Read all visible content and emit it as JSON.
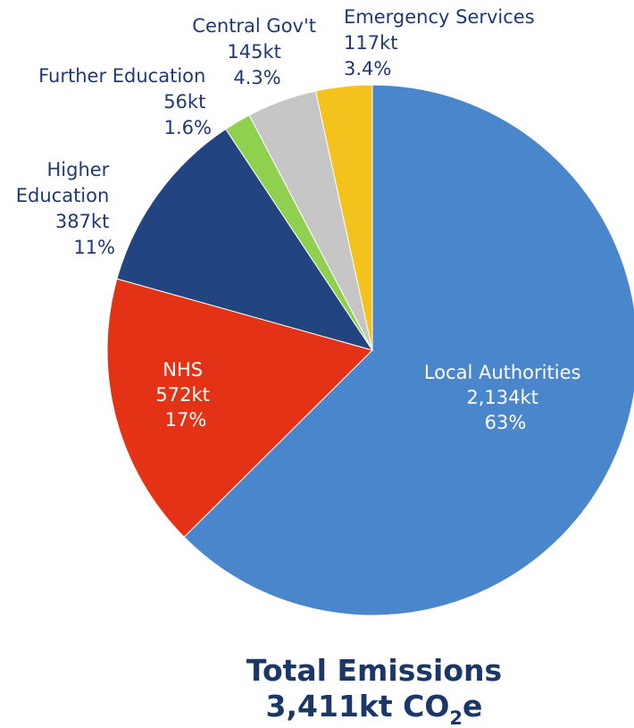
{
  "chart_data": {
    "type": "pie",
    "slices": [
      {
        "label": "Local Authorities",
        "value": 2134,
        "value_label": "2,134kt",
        "pct_label": "63%",
        "color": "#4a86cb"
      },
      {
        "label": "NHS",
        "value": 572,
        "value_label": "572kt",
        "pct_label": "17%",
        "color": "#e43216"
      },
      {
        "label": "Higher Education",
        "value": 387,
        "value_label": "387kt",
        "pct_label": "11%",
        "color": "#224480"
      },
      {
        "label": "Further Education",
        "value": 56,
        "value_label": "56kt",
        "pct_label": "1.6%",
        "color": "#8fd04f"
      },
      {
        "label": "Central Gov't",
        "value": 145,
        "value_label": "145kt",
        "pct_label": "4.3%",
        "color": "#c6c6c6"
      },
      {
        "label": "Emergency Services",
        "value": 117,
        "value_label": "117kt",
        "pct_label": "3.4%",
        "color": "#f4c21d"
      }
    ],
    "total": {
      "line1": "Total Emissions",
      "value": "3,411kt CO",
      "subscript": "2",
      "suffix": "e"
    }
  }
}
